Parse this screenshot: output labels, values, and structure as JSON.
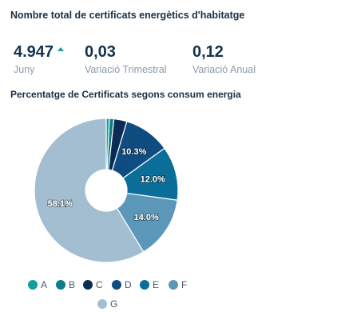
{
  "header": {
    "title": "Nombre total de certificats energètics d'habitatge",
    "subtitle": "Percentatge de Certificats segons consum energia"
  },
  "kpis": [
    {
      "value": "4.947",
      "label": "Juny",
      "trend": "up",
      "trend_icon": "triangle-up-icon",
      "trend_color": "#1a9aa0"
    },
    {
      "value": "0,03",
      "label": "Variació Trimestral"
    },
    {
      "value": "0,12",
      "label": "Variació Anual"
    }
  ],
  "chart_data": {
    "type": "pie",
    "donut": true,
    "categories": [
      "A",
      "B",
      "C",
      "D",
      "E",
      "F",
      "G"
    ],
    "values": [
      0.7,
      1.0,
      2.9,
      10.3,
      12.0,
      14.0,
      58.1
    ],
    "colors": [
      "#139e9c",
      "#0e7c8a",
      "#0d2c54",
      "#0f4c81",
      "#0b6e99",
      "#5b97b9",
      "#a3bed1"
    ],
    "data_labels": [
      "",
      "",
      "",
      "10.3%",
      "12.0%",
      "14.0%",
      "58.1%"
    ],
    "legend": [
      "A",
      "B",
      "C",
      "D",
      "E",
      "F",
      "G"
    ],
    "legend_position": "bottom"
  }
}
